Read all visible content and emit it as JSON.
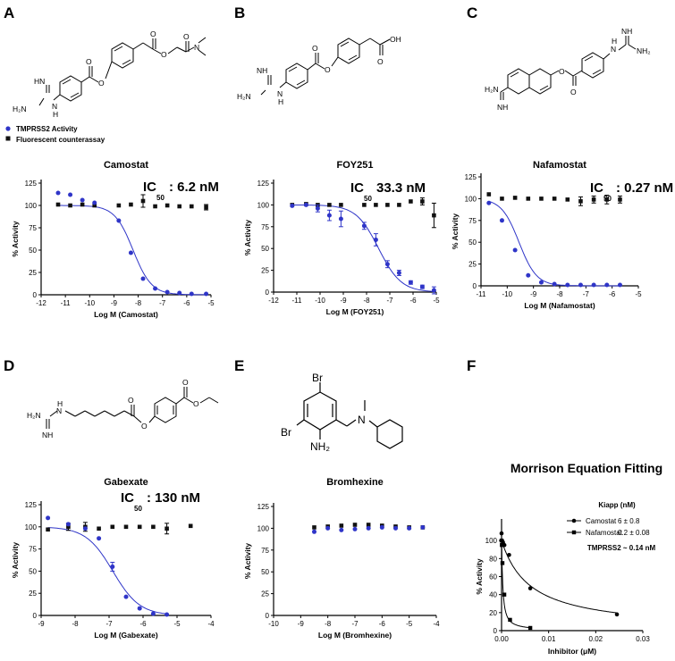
{
  "panels": {
    "A": {
      "label": "A"
    },
    "B": {
      "label": "B"
    },
    "C": {
      "label": "C"
    },
    "D": {
      "label": "D"
    },
    "E": {
      "label": "E"
    },
    "F": {
      "label": "F"
    }
  },
  "legend_top": {
    "activity": "TMPRSS2 Activity",
    "counter": "Fluorescent counterassay"
  },
  "structures": {
    "H2N": "H₂N",
    "NH": "NH",
    "N": "N",
    "HN": "HN",
    "H": "H",
    "O": "O",
    "OH": "OH",
    "NH2": "NH₂",
    "Br": "Br"
  },
  "colors": {
    "activity": "#2f35c8",
    "counter": "#111111"
  },
  "chart_data": [
    {
      "id": "A",
      "type": "scatter",
      "title": "Camostat",
      "ic50_prefix": "IC",
      "ic50_sub": "50",
      "ic50_value": ": 6.2 nM",
      "xlabel": "Log M (Camostat)",
      "ylabel": "% Activity",
      "xlim": [
        -12,
        -5
      ],
      "ylim": [
        0,
        125
      ],
      "xticks": [
        -12,
        -11,
        -10,
        -9,
        -8,
        -7,
        -6,
        -5
      ],
      "yticks": [
        0,
        25,
        50,
        75,
        100,
        125
      ],
      "activity_x": [
        -11.3,
        -10.8,
        -10.3,
        -9.8,
        -8.8,
        -8.3,
        -7.8,
        -7.3,
        -6.8,
        -6.3,
        -5.8,
        -5.2
      ],
      "activity_y": [
        114,
        112,
        106,
        103,
        83,
        47,
        18,
        7,
        3,
        2,
        1,
        1
      ],
      "counter_x": [
        -11.3,
        -10.8,
        -10.3,
        -9.8,
        -8.8,
        -8.3,
        -7.8,
        -7.3,
        -6.8,
        -6.3,
        -5.8,
        -5.2
      ],
      "counter_y": [
        101,
        100,
        101,
        100,
        100,
        101,
        105,
        99,
        100,
        99,
        99,
        98
      ],
      "counter_err": [
        0,
        0,
        0,
        0,
        0,
        0,
        7,
        0,
        0,
        0,
        0,
        3
      ],
      "fit": {
        "top": 100,
        "bottom": 0,
        "logIC50": -8.21,
        "hill": 1.15
      }
    },
    {
      "id": "B",
      "type": "scatter",
      "title": "FOY251",
      "ic50_prefix": "IC",
      "ic50_sub": "50",
      "ic50_value": " 33.3 nM",
      "xlabel": "Log M (FOY251)",
      "ylabel": "% Activity",
      "xlim": [
        -12,
        -5
      ],
      "ylim": [
        0,
        125
      ],
      "xticks": [
        -12,
        -11,
        -10,
        -9,
        -8,
        -7,
        -6,
        -5
      ],
      "yticks": [
        0,
        25,
        50,
        75,
        100,
        125
      ],
      "activity_x": [
        -11.2,
        -10.6,
        -10.1,
        -9.6,
        -9.1,
        -8.1,
        -7.6,
        -7.1,
        -6.6,
        -6.1,
        -5.6,
        -5.1
      ],
      "activity_y": [
        99,
        100,
        96,
        88,
        84,
        76,
        60,
        32,
        22,
        11,
        6,
        2
      ],
      "activity_err": [
        0,
        0,
        4,
        6,
        9,
        4,
        7,
        4,
        3,
        2,
        2,
        4
      ],
      "counter_x": [
        -11.2,
        -10.6,
        -10.1,
        -9.6,
        -9.1,
        -8.1,
        -7.6,
        -7.1,
        -6.6,
        -6.1,
        -5.6,
        -5.1
      ],
      "counter_y": [
        100,
        101,
        100,
        100,
        100,
        100,
        100,
        100,
        100,
        104,
        104,
        88
      ],
      "counter_err": [
        0,
        0,
        0,
        0,
        0,
        0,
        0,
        0,
        0,
        0,
        4,
        14
      ],
      "fit": {
        "top": 100,
        "bottom": 0,
        "logIC50": -7.48,
        "hill": 0.9
      }
    },
    {
      "id": "C",
      "type": "scatter",
      "title": "Nafamostat",
      "ic50_prefix": "IC",
      "ic50_sub": "50",
      "ic50_value": ": 0.27 nM",
      "xlabel": "Log M (Nafamostat)",
      "ylabel": "% Activity",
      "xlim": [
        -11,
        -5
      ],
      "ylim": [
        0,
        125
      ],
      "xticks": [
        -11,
        -10,
        -9,
        -8,
        -7,
        -6,
        -5
      ],
      "yticks": [
        0,
        25,
        50,
        75,
        100,
        125
      ],
      "activity_x": [
        -10.7,
        -10.2,
        -9.7,
        -9.2,
        -8.7,
        -8.2,
        -7.7,
        -7.2,
        -6.7,
        -6.2,
        -5.7
      ],
      "activity_y": [
        95,
        75,
        41,
        12,
        4,
        2,
        1,
        1,
        1,
        1,
        1
      ],
      "counter_x": [
        -10.7,
        -10.2,
        -9.7,
        -9.2,
        -8.7,
        -8.2,
        -7.7,
        -7.2,
        -6.7,
        -6.2,
        -5.7
      ],
      "counter_y": [
        105,
        100,
        101,
        100,
        100,
        100,
        99,
        97,
        99,
        99,
        99
      ],
      "counter_err": [
        0,
        0,
        0,
        0,
        0,
        0,
        0,
        5,
        4,
        5,
        4
      ],
      "fit": {
        "top": 100,
        "bottom": 0,
        "logIC50": -9.55,
        "hill": 1.3
      }
    },
    {
      "id": "D",
      "type": "scatter",
      "title": "Gabexate",
      "ic50_prefix": "IC",
      "ic50_sub": "50",
      "ic50_value": ": 130 nM",
      "xlabel": "Log M (Gabexate)",
      "ylabel": "% Activity",
      "xlim": [
        -9,
        -4
      ],
      "ylim": [
        0,
        125
      ],
      "xticks": [
        -9,
        -8,
        -7,
        -6,
        -5,
        -4
      ],
      "yticks": [
        0,
        25,
        50,
        75,
        100,
        125
      ],
      "activity_x": [
        -8.8,
        -8.2,
        -7.7,
        -7.3,
        -6.9,
        -6.5,
        -6.1,
        -5.7,
        -5.3
      ],
      "activity_y": [
        110,
        103,
        98,
        87,
        55,
        21,
        8,
        2,
        1
      ],
      "activity_err": [
        0,
        0,
        0,
        0,
        5,
        0,
        0,
        0,
        0
      ],
      "counter_x": [
        -8.8,
        -8.2,
        -7.7,
        -7.3,
        -6.9,
        -6.5,
        -6.1,
        -5.7,
        -5.3,
        -4.6
      ],
      "counter_y": [
        97,
        100,
        100,
        98,
        100,
        100,
        100,
        100,
        98,
        101
      ],
      "counter_err": [
        0,
        4,
        5,
        0,
        0,
        0,
        0,
        0,
        6,
        0
      ],
      "fit": {
        "top": 100,
        "bottom": 0,
        "logIC50": -6.89,
        "hill": 1.1
      }
    },
    {
      "id": "E",
      "type": "scatter",
      "title": "Bromhexine",
      "xlabel": "Log M (Bromhexine)",
      "ylabel": "% Activity",
      "xlim": [
        -10,
        -4
      ],
      "ylim": [
        0,
        125
      ],
      "xticks": [
        -10,
        -9,
        -8,
        -7,
        -6,
        -5,
        -4
      ],
      "yticks": [
        0,
        25,
        50,
        75,
        100,
        125
      ],
      "activity_x": [
        -8.5,
        -8.0,
        -7.5,
        -7.0,
        -6.5,
        -6.0,
        -5.5,
        -5.0,
        -4.5
      ],
      "activity_y": [
        96,
        100,
        98,
        99,
        100,
        101,
        100,
        100,
        101
      ],
      "counter_x": [
        -8.5,
        -8.0,
        -7.5,
        -7.0,
        -6.5,
        -6.0,
        -5.5,
        -5.0,
        -4.5
      ],
      "counter_y": [
        101,
        102,
        103,
        104,
        104,
        103,
        102,
        101,
        101
      ]
    },
    {
      "id": "F",
      "type": "scatter",
      "title": "Morrison Equation Fitting",
      "xlabel": "Inhibitor (μM)",
      "ylabel": "% Activity",
      "xlim": [
        0,
        0.03
      ],
      "ylim": [
        0,
        120
      ],
      "xticks": [
        0,
        0.01,
        0.02,
        0.03
      ],
      "xticklabels": [
        "0.00",
        "0.01",
        "0.02",
        "0.03"
      ],
      "yticks": [
        0,
        20,
        40,
        60,
        80,
        100
      ],
      "klapp_header": "Kiapp (nM)",
      "target_note": "TMPRSS2 ~ 0.14 nM",
      "series": [
        {
          "name": "Camostat",
          "value": "6 ± 0.8",
          "x": [
            0,
            0.0001,
            0.0003,
            0.0006,
            0.0016,
            0.0061,
            0.0245
          ],
          "y": [
            108,
            100,
            98,
            95,
            84,
            47,
            18
          ]
        },
        {
          "name": "Nafamostat",
          "value": "0.2 ± 0.08",
          "x": [
            0,
            6e-05,
            0.00019,
            0.00058,
            0.0018,
            0.0061
          ],
          "y": [
            100,
            95,
            75,
            40,
            12,
            3
          ]
        }
      ],
      "morrison": [
        {
          "Et": 0.00014,
          "Ki": 0.006
        },
        {
          "Et": 0.00014,
          "Ki": 0.0002
        }
      ]
    }
  ]
}
